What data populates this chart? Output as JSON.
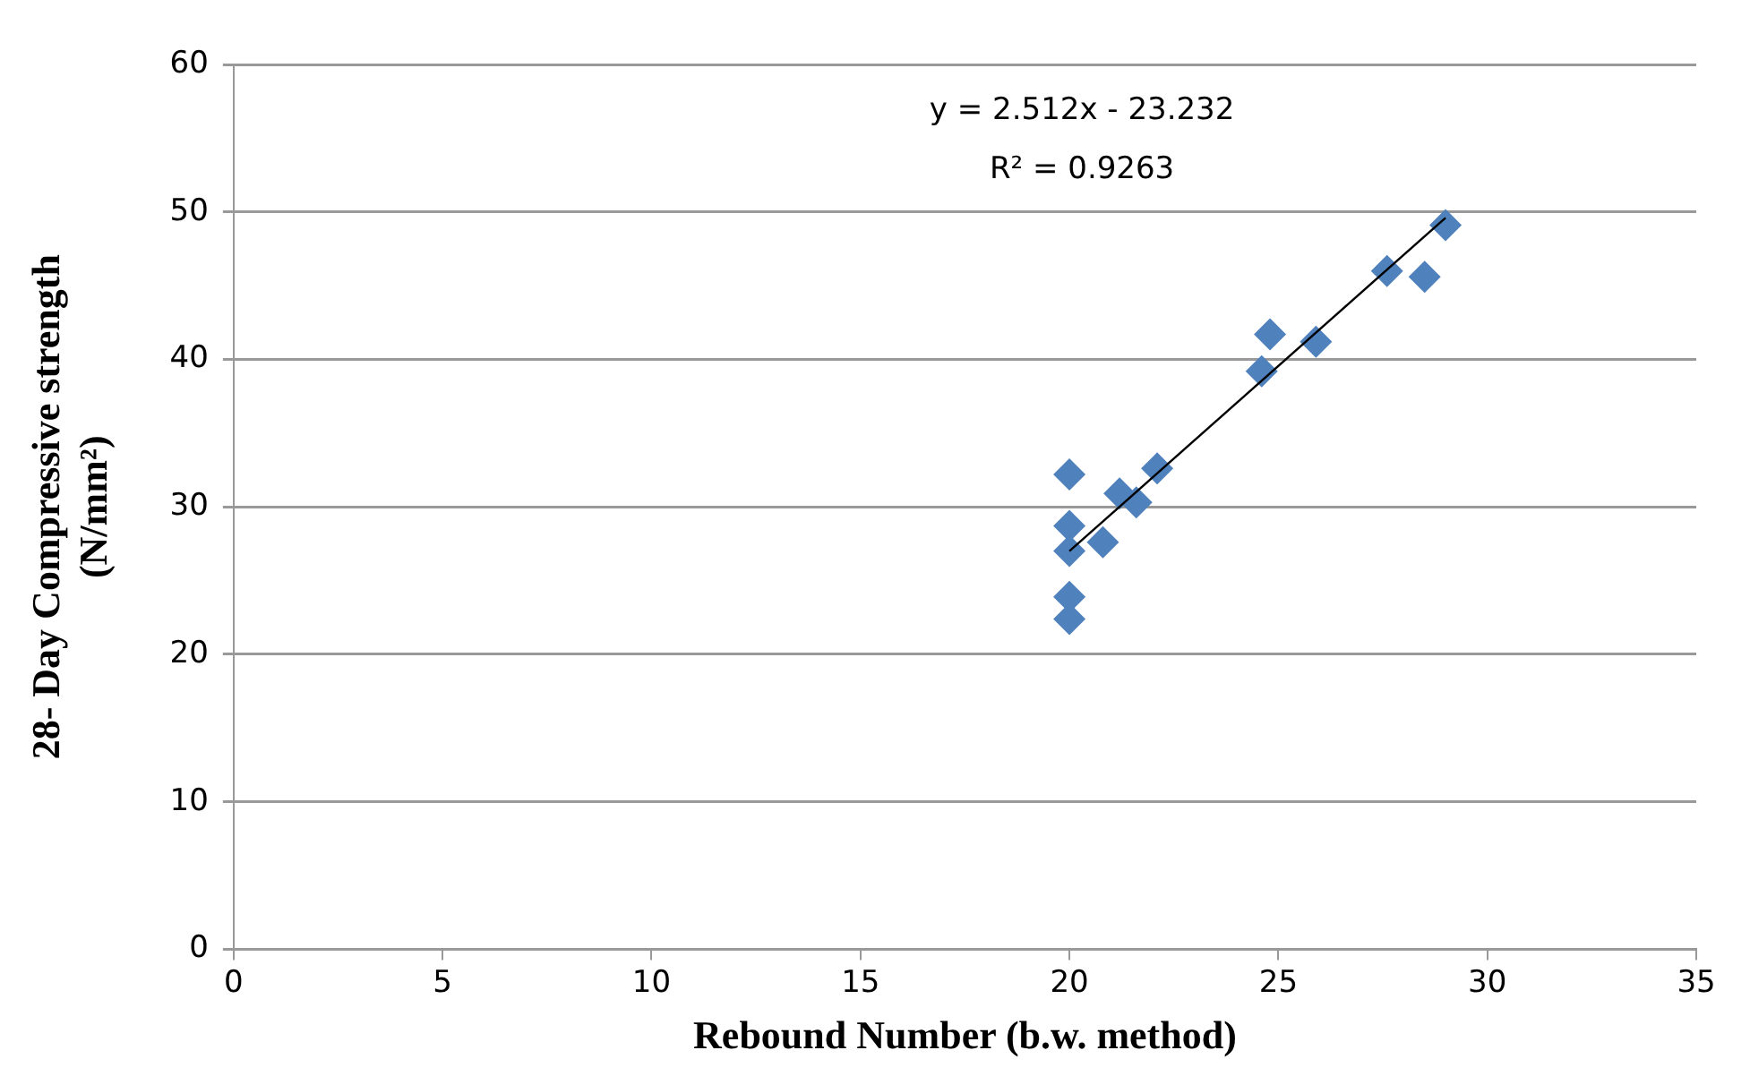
{
  "chart_data": {
    "type": "scatter",
    "xlabel": "Rebound Number (b.w. method)",
    "ylabel": "28- Day Compressive strength\n(N/mm²)",
    "series": [
      {
        "marker": "diamond",
        "color": "#4f81bd",
        "x": [
          20.0,
          20.0,
          20.0,
          20.0,
          20.0,
          20.8,
          21.2,
          21.6,
          22.1,
          24.6,
          24.8,
          25.9,
          27.6,
          28.5,
          29.0
        ],
        "values": [
          32.2,
          28.7,
          27.0,
          23.9,
          22.4,
          27.6,
          30.9,
          30.3,
          32.6,
          39.2,
          41.7,
          41.2,
          46.0,
          45.6,
          49.1
        ]
      },
      {
        "type": "line",
        "marker": "none",
        "color": "#000000",
        "x": [
          20,
          29
        ],
        "values": [
          27.0,
          49.6
        ]
      }
    ],
    "annotations": [
      "y = 2.512x - 23.232",
      "R² = 0.9263"
    ],
    "xlim": [
      0,
      35
    ],
    "xticks": [
      0,
      5,
      10,
      15,
      20,
      25,
      30,
      35
    ],
    "ylim": [
      0,
      60
    ],
    "yticks": [
      0,
      10,
      20,
      30,
      40,
      50,
      60
    ],
    "grid": "y",
    "legend": false
  }
}
